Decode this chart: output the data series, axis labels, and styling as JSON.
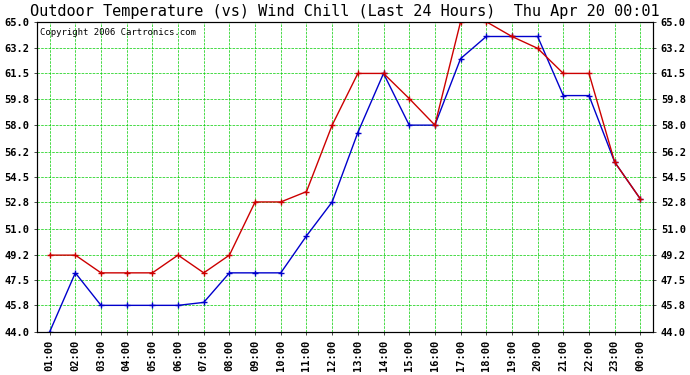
{
  "title": "Outdoor Temperature (vs) Wind Chill (Last 24 Hours)  Thu Apr 20 00:01",
  "copyright": "Copyright 2006 Cartronics.com",
  "background_color": "#ffffff",
  "plot_bg_color": "#ffffff",
  "grid_color": "#00cc00",
  "x_labels": [
    "01:00",
    "02:00",
    "03:00",
    "04:00",
    "05:00",
    "06:00",
    "07:00",
    "08:00",
    "09:00",
    "10:00",
    "11:00",
    "12:00",
    "13:00",
    "14:00",
    "15:00",
    "16:00",
    "17:00",
    "18:00",
    "19:00",
    "20:00",
    "21:00",
    "22:00",
    "23:00",
    "00:00"
  ],
  "temp_data": [
    49.2,
    49.2,
    48.0,
    48.0,
    48.0,
    49.2,
    48.0,
    49.2,
    52.8,
    52.8,
    53.5,
    58.0,
    61.5,
    61.5,
    59.8,
    58.0,
    65.0,
    65.0,
    64.0,
    63.2,
    61.5,
    61.5,
    55.5,
    53.0
  ],
  "wind_chill_data": [
    44.0,
    48.0,
    45.8,
    45.8,
    45.8,
    45.8,
    46.0,
    48.0,
    48.0,
    48.0,
    50.5,
    52.8,
    57.5,
    61.5,
    58.0,
    58.0,
    62.5,
    64.0,
    64.0,
    64.0,
    60.0,
    60.0,
    55.5,
    53.0
  ],
  "temp_color": "#cc0000",
  "wind_chill_color": "#0000cc",
  "ylim_min": 44.0,
  "ylim_max": 65.0,
  "yticks": [
    44.0,
    45.8,
    47.5,
    49.2,
    51.0,
    52.8,
    54.5,
    56.2,
    58.0,
    59.8,
    61.5,
    63.2,
    65.0
  ],
  "title_fontsize": 11,
  "tick_fontsize": 7.5,
  "copyright_fontsize": 6.5
}
